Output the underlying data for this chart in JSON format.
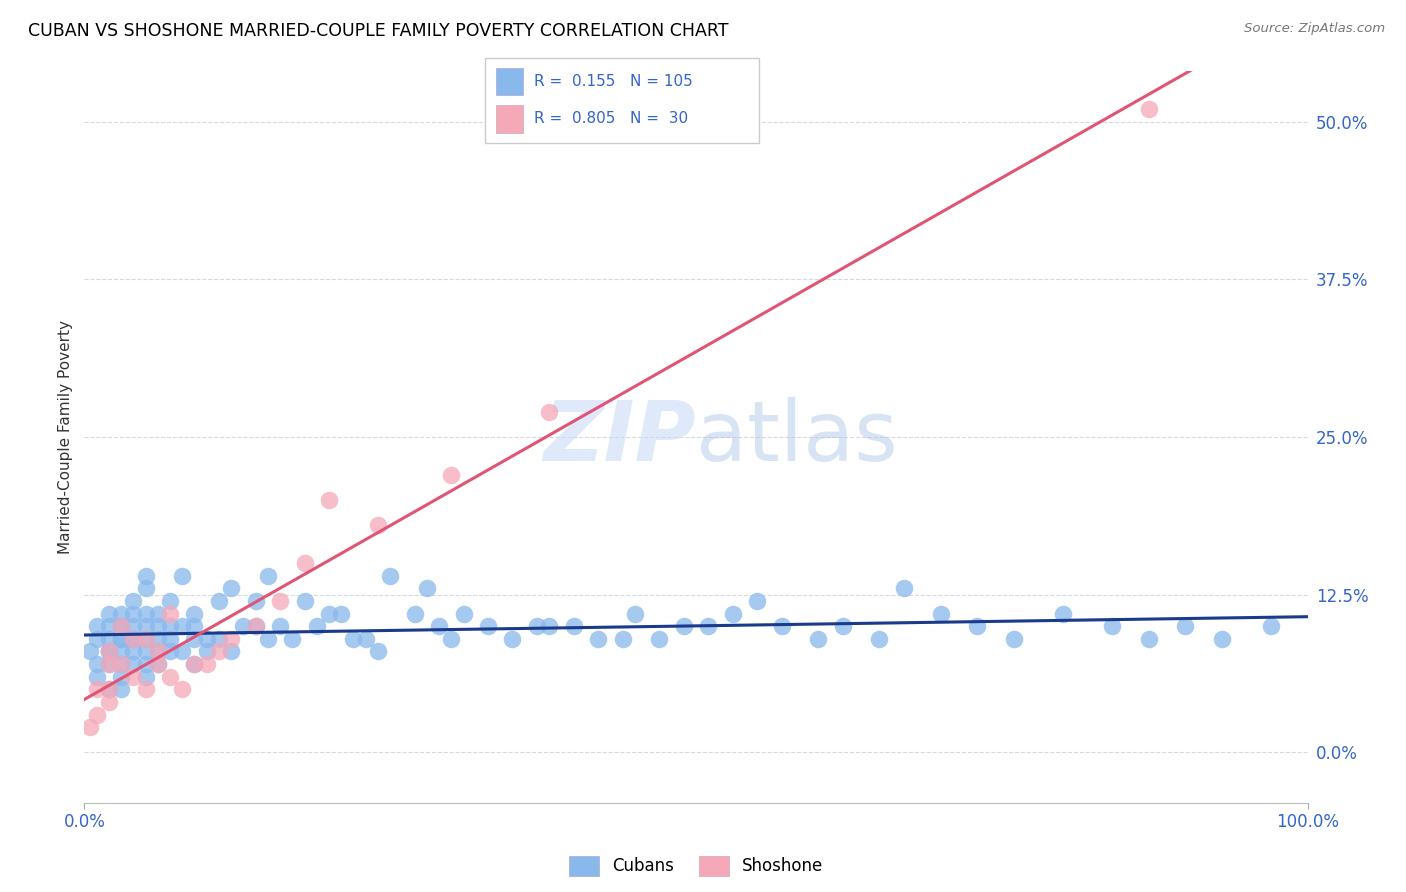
{
  "title": "CUBAN VS SHOSHONE MARRIED-COUPLE FAMILY POVERTY CORRELATION CHART",
  "source": "Source: ZipAtlas.com",
  "ylabel": "Married-Couple Family Poverty",
  "ytick_values": [
    0,
    12.5,
    25.0,
    37.5,
    50.0
  ],
  "xlim": [
    0,
    100
  ],
  "ylim": [
    -4,
    54
  ],
  "cuban_color": "#89b8ec",
  "shoshone_color": "#f5a8b8",
  "cuban_R": 0.155,
  "cuban_N": 105,
  "shoshone_R": 0.805,
  "shoshone_N": 30,
  "regression_blue_color": "#1a3a8c",
  "regression_pink_color": "#e05575",
  "watermark_zip": "ZIP",
  "watermark_atlas": "atlas",
  "background_color": "#ffffff",
  "grid_color": "#d8d8e0",
  "title_fontsize": 12.5,
  "axis_label_color": "#3565c8",
  "cubans_x": [
    0.5,
    1,
    1,
    1,
    1,
    2,
    2,
    2,
    2,
    2,
    2,
    2,
    3,
    3,
    3,
    3,
    3,
    3,
    3,
    3,
    3,
    4,
    4,
    4,
    4,
    4,
    4,
    4,
    5,
    5,
    5,
    5,
    5,
    5,
    5,
    5,
    6,
    6,
    6,
    6,
    6,
    7,
    7,
    7,
    7,
    8,
    8,
    8,
    9,
    9,
    9,
    9,
    10,
    10,
    11,
    11,
    12,
    12,
    13,
    14,
    14,
    15,
    15,
    16,
    17,
    18,
    19,
    20,
    21,
    22,
    23,
    24,
    25,
    27,
    28,
    29,
    30,
    31,
    33,
    35,
    37,
    38,
    40,
    42,
    44,
    45,
    47,
    49,
    51,
    53,
    55,
    57,
    60,
    62,
    65,
    67,
    70,
    73,
    76,
    80,
    84,
    87,
    90,
    93,
    97
  ],
  "cubans_y": [
    8,
    6,
    7,
    9,
    10,
    5,
    7,
    8,
    8,
    9,
    10,
    11,
    5,
    6,
    7,
    8,
    9,
    9,
    10,
    10,
    11,
    7,
    8,
    9,
    9,
    10,
    11,
    12,
    6,
    7,
    8,
    9,
    10,
    11,
    13,
    14,
    7,
    8,
    9,
    10,
    11,
    8,
    9,
    10,
    12,
    8,
    10,
    14,
    7,
    9,
    10,
    11,
    8,
    9,
    9,
    12,
    8,
    13,
    10,
    10,
    12,
    9,
    14,
    10,
    9,
    12,
    10,
    11,
    11,
    9,
    9,
    8,
    14,
    11,
    13,
    10,
    9,
    11,
    10,
    9,
    10,
    10,
    10,
    9,
    9,
    11,
    9,
    10,
    10,
    11,
    12,
    10,
    9,
    10,
    9,
    13,
    11,
    10,
    9,
    11,
    10,
    9,
    10,
    9,
    10
  ],
  "shoshone_x": [
    0.5,
    1,
    1,
    2,
    2,
    2,
    2,
    3,
    3,
    4,
    4,
    5,
    5,
    6,
    6,
    7,
    7,
    8,
    9,
    10,
    11,
    12,
    14,
    16,
    18,
    20,
    24,
    30,
    38,
    87
  ],
  "shoshone_y": [
    2,
    3,
    5,
    4,
    5,
    7,
    8,
    7,
    10,
    6,
    9,
    5,
    9,
    7,
    8,
    6,
    11,
    5,
    7,
    7,
    8,
    9,
    10,
    12,
    15,
    20,
    18,
    22,
    27,
    51
  ]
}
